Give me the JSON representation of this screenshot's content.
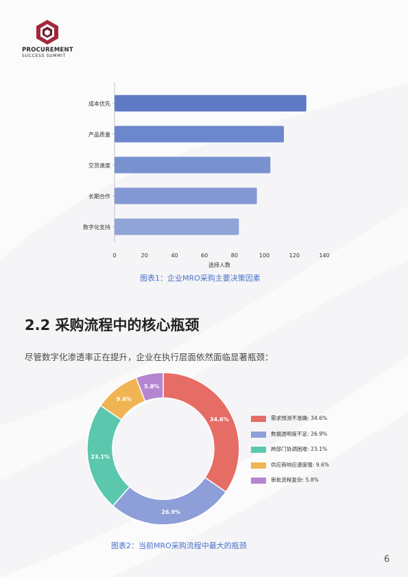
{
  "header": {
    "brand_line1": "PROCUREMENT",
    "brand_line2": "SUCCESS  SUMMIT",
    "logo_colors": [
      "#a0243a",
      "#6e1a2c"
    ]
  },
  "chart1_caption": "图表1：企业MRO采购主要决策因素",
  "section": {
    "title": "2.2 采购流程中的核心瓶颈",
    "intro": "尽管数字化渗透率正在提升，企业在执行层面依然面临显著瓶颈："
  },
  "chart2_caption": "图表2：当前MRO采购流程中最大的瓶颈",
  "page_number": "6",
  "chart_data": [
    {
      "type": "bar",
      "orientation": "horizontal",
      "categories": [
        "成本优先",
        "产品质量",
        "交货速度",
        "长期合作",
        "数字化支持"
      ],
      "values": [
        128,
        113,
        104,
        95,
        83
      ],
      "xlabel": "选择人数",
      "ylabel": "",
      "xlim": [
        0,
        140
      ],
      "xticks": [
        "0",
        "20",
        "40",
        "60",
        "80",
        "100",
        "120",
        "140"
      ],
      "grid": false,
      "colors": [
        "#5f7bc6",
        "#6c87cb",
        "#7891cf",
        "#8499d3",
        "#90a4d8"
      ]
    },
    {
      "type": "pie",
      "style": "donut",
      "labels": [
        "需求预测不准确",
        "数据透明度不足",
        "跨部门协调困难",
        "供应商响应速度慢",
        "审批流程复杂"
      ],
      "legend_labels": [
        "需求预测不准确: 34.6%",
        "数据透明度不足: 26.9%",
        "跨部门协调困难: 23.1%",
        "供应商响应速度慢: 9.6%",
        "审批流程复杂: 5.8%"
      ],
      "values": [
        34.6,
        26.9,
        23.1,
        9.6,
        5.8
      ],
      "value_labels": [
        "34.6%",
        "26.9%",
        "23.1%",
        "9.6%",
        "5.8%"
      ],
      "colors": [
        "#e66c66",
        "#8d9ed8",
        "#5bc7ad",
        "#f0b452",
        "#b585d0"
      ],
      "legend_position": "right"
    }
  ]
}
